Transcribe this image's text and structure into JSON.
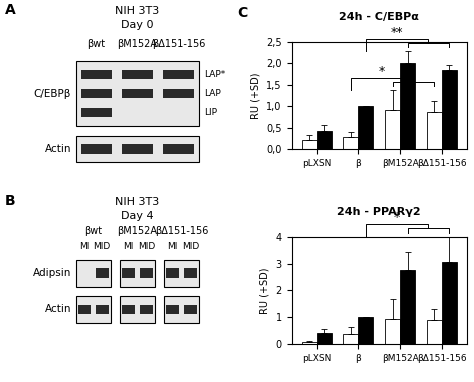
{
  "panels": [
    {
      "label": "A",
      "cell_line": "NIH 3T3",
      "day": "Day 0",
      "lanes": [
        "βwt",
        "βM152A",
        "βΔ151-156"
      ],
      "blots": [
        {
          "label": "C/EBPβ",
          "bands": [
            {
              "name": "LAP*",
              "present": [
                true,
                true,
                true
              ]
            },
            {
              "name": "LAP",
              "present": [
                true,
                true,
                true
              ]
            },
            {
              "name": "LIP",
              "present": [
                true,
                false,
                false
              ]
            }
          ]
        },
        {
          "label": "Actin",
          "bands": [
            {
              "present": [
                true,
                true,
                true
              ]
            }
          ]
        }
      ]
    },
    {
      "label": "B",
      "cell_line": "NIH 3T3",
      "day": "Day 4",
      "groups": [
        {
          "label": "βwt",
          "lanes": [
            "MI",
            "MID"
          ]
        },
        {
          "label": "βM152A",
          "lanes": [
            "MI",
            "MID"
          ]
        },
        {
          "label": "βΔ151-156",
          "lanes": [
            "MI",
            "MID"
          ]
        }
      ],
      "blots": [
        {
          "label": "Adipsin",
          "bands": [
            {
              "present": [
                false,
                true,
                true,
                true,
                true,
                true
              ]
            }
          ]
        },
        {
          "label": "Actin",
          "bands": [
            {
              "present": [
                true,
                true,
                true,
                true,
                true,
                true
              ]
            }
          ]
        }
      ]
    }
  ],
  "panel_c_label": "C",
  "chart_data": [
    {
      "type": "bar",
      "title": "24h - C/EBPα",
      "y_label": "RU (+SD)",
      "categories": [
        "pLXSN",
        "β",
        "βM152A",
        "βΔ151-156"
      ],
      "series": [
        {
          "color": "#ffffff",
          "values": [
            0.22,
            0.27,
            0.92,
            0.87
          ],
          "errors": [
            0.1,
            0.12,
            0.45,
            0.25
          ]
        },
        {
          "color": "#000000",
          "values": [
            0.43,
            1.0,
            2.0,
            1.85
          ],
          "errors": [
            0.12,
            0,
            0.28,
            0.12
          ]
        }
      ],
      "ylim": [
        0,
        2.5
      ],
      "yticks": [
        {
          "value": 0,
          "label": "0,0"
        },
        {
          "value": 0.5,
          "label": "0,5"
        },
        {
          "value": 1,
          "label": "1,0"
        },
        {
          "value": 1.5,
          "label": "1,5"
        },
        {
          "value": 2,
          "label": "2,0"
        },
        {
          "value": 2.5,
          "label": "2,5"
        }
      ],
      "annotations": [
        {
          "text": "*",
          "from": "β",
          "to": [
            "βM152A",
            "βΔ151-156"
          ],
          "series": 0
        },
        {
          "text": "**",
          "from": "β",
          "to": [
            "βM152A",
            "βΔ151-156"
          ],
          "series": 1
        }
      ]
    },
    {
      "type": "bar",
      "title": "24h - PPARγ2",
      "y_label": "RU (+SD)",
      "categories": [
        "pLXSN",
        "β",
        "βM152A",
        "βΔ151-156"
      ],
      "series": [
        {
          "color": "#ffffff",
          "values": [
            0.05,
            0.38,
            0.92,
            0.9
          ],
          "errors": [
            0.05,
            0.25,
            0.75,
            0.4
          ]
        },
        {
          "color": "#000000",
          "values": [
            0.42,
            1.0,
            2.75,
            3.05
          ],
          "errors": [
            0.15,
            0,
            0.7,
            0.95
          ]
        }
      ],
      "ylim": [
        0,
        4
      ],
      "yticks": [
        0,
        1,
        2,
        3,
        4
      ],
      "annotations": [
        {
          "text": "*",
          "from": "β",
          "to": [
            "βM152A",
            "βΔ151-156"
          ],
          "series": 1
        }
      ]
    }
  ]
}
